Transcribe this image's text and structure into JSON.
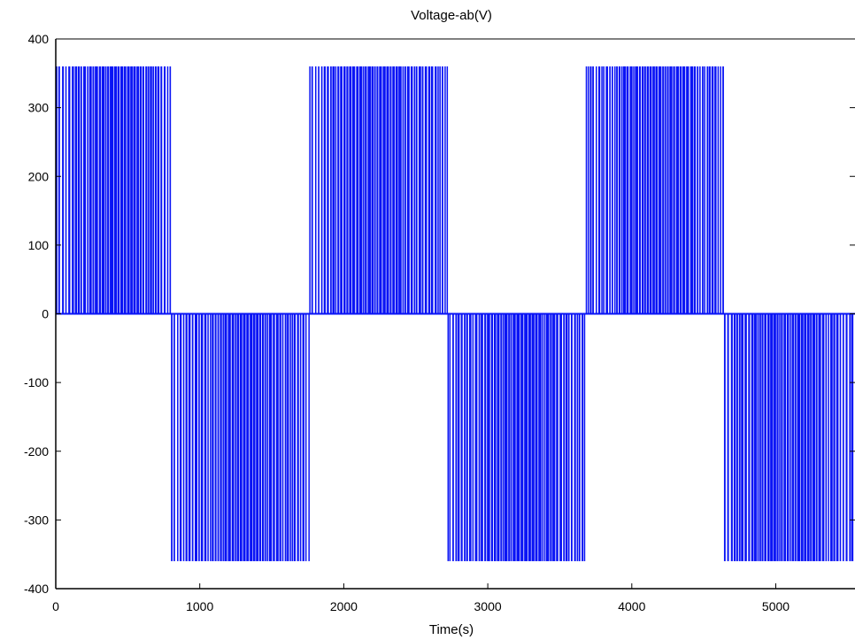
{
  "chart_data": {
    "type": "line",
    "title": "Voltage-ab(V)",
    "xlabel": "Time(s)",
    "ylabel": "",
    "xlim": [
      0,
      5550
    ],
    "ylim": [
      -400,
      400
    ],
    "xticks": [
      0,
      1000,
      2000,
      3000,
      4000,
      5000
    ],
    "yticks": [
      400,
      300,
      200,
      100,
      0,
      -100,
      -200,
      -300,
      -400
    ],
    "grid": false,
    "legend": "none",
    "series_color": "#0a14f5",
    "series": [
      {
        "style": "pwm-pulses",
        "level_high": 360,
        "level_low": -360,
        "segments": [
          {
            "x_start": 0,
            "x_end": 800,
            "sign": 1
          },
          {
            "x_start": 800,
            "x_end": 1760,
            "sign": -1
          },
          {
            "x_start": 1760,
            "x_end": 2720,
            "sign": 1
          },
          {
            "x_start": 2720,
            "x_end": 3680,
            "sign": -1
          },
          {
            "x_start": 3680,
            "x_end": 4640,
            "sign": 1
          },
          {
            "x_start": 4640,
            "x_end": 5550,
            "sign": -1
          }
        ]
      }
    ]
  }
}
